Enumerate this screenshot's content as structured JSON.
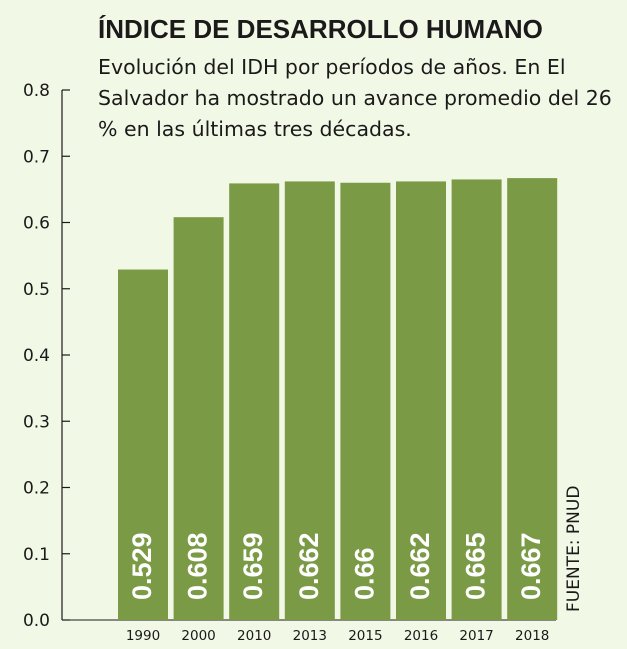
{
  "chart_data": {
    "type": "bar",
    "title": "ÍNDICE DE DESARROLLO HUMANO",
    "subtitle": "Evolución del IDH por períodos de años. En El Salvador ha mostrado un avance promedio del 26 % en las últimas tres décadas.",
    "categories": [
      "1990",
      "2000",
      "2010",
      "2013",
      "2015",
      "2016",
      "2017",
      "2018"
    ],
    "values": [
      0.529,
      0.608,
      0.659,
      0.662,
      0.66,
      0.662,
      0.665,
      0.667
    ],
    "value_labels": [
      "0.529",
      "0.608",
      "0.659",
      "0.662",
      "0.66",
      "0.662",
      "0.665",
      "0.667"
    ],
    "y_ticks": [
      "0.0",
      "0.1",
      "0.2",
      "0.3",
      "0.4",
      "0.5",
      "0.6",
      "0.7",
      "0.8"
    ],
    "ylim": [
      0,
      0.8
    ],
    "xlabel": "",
    "ylabel": "",
    "source": "FUENTE: PNUD",
    "bar_color": "#7a9a46",
    "label_color": "#ffffff",
    "grid": false,
    "legend": "none"
  }
}
